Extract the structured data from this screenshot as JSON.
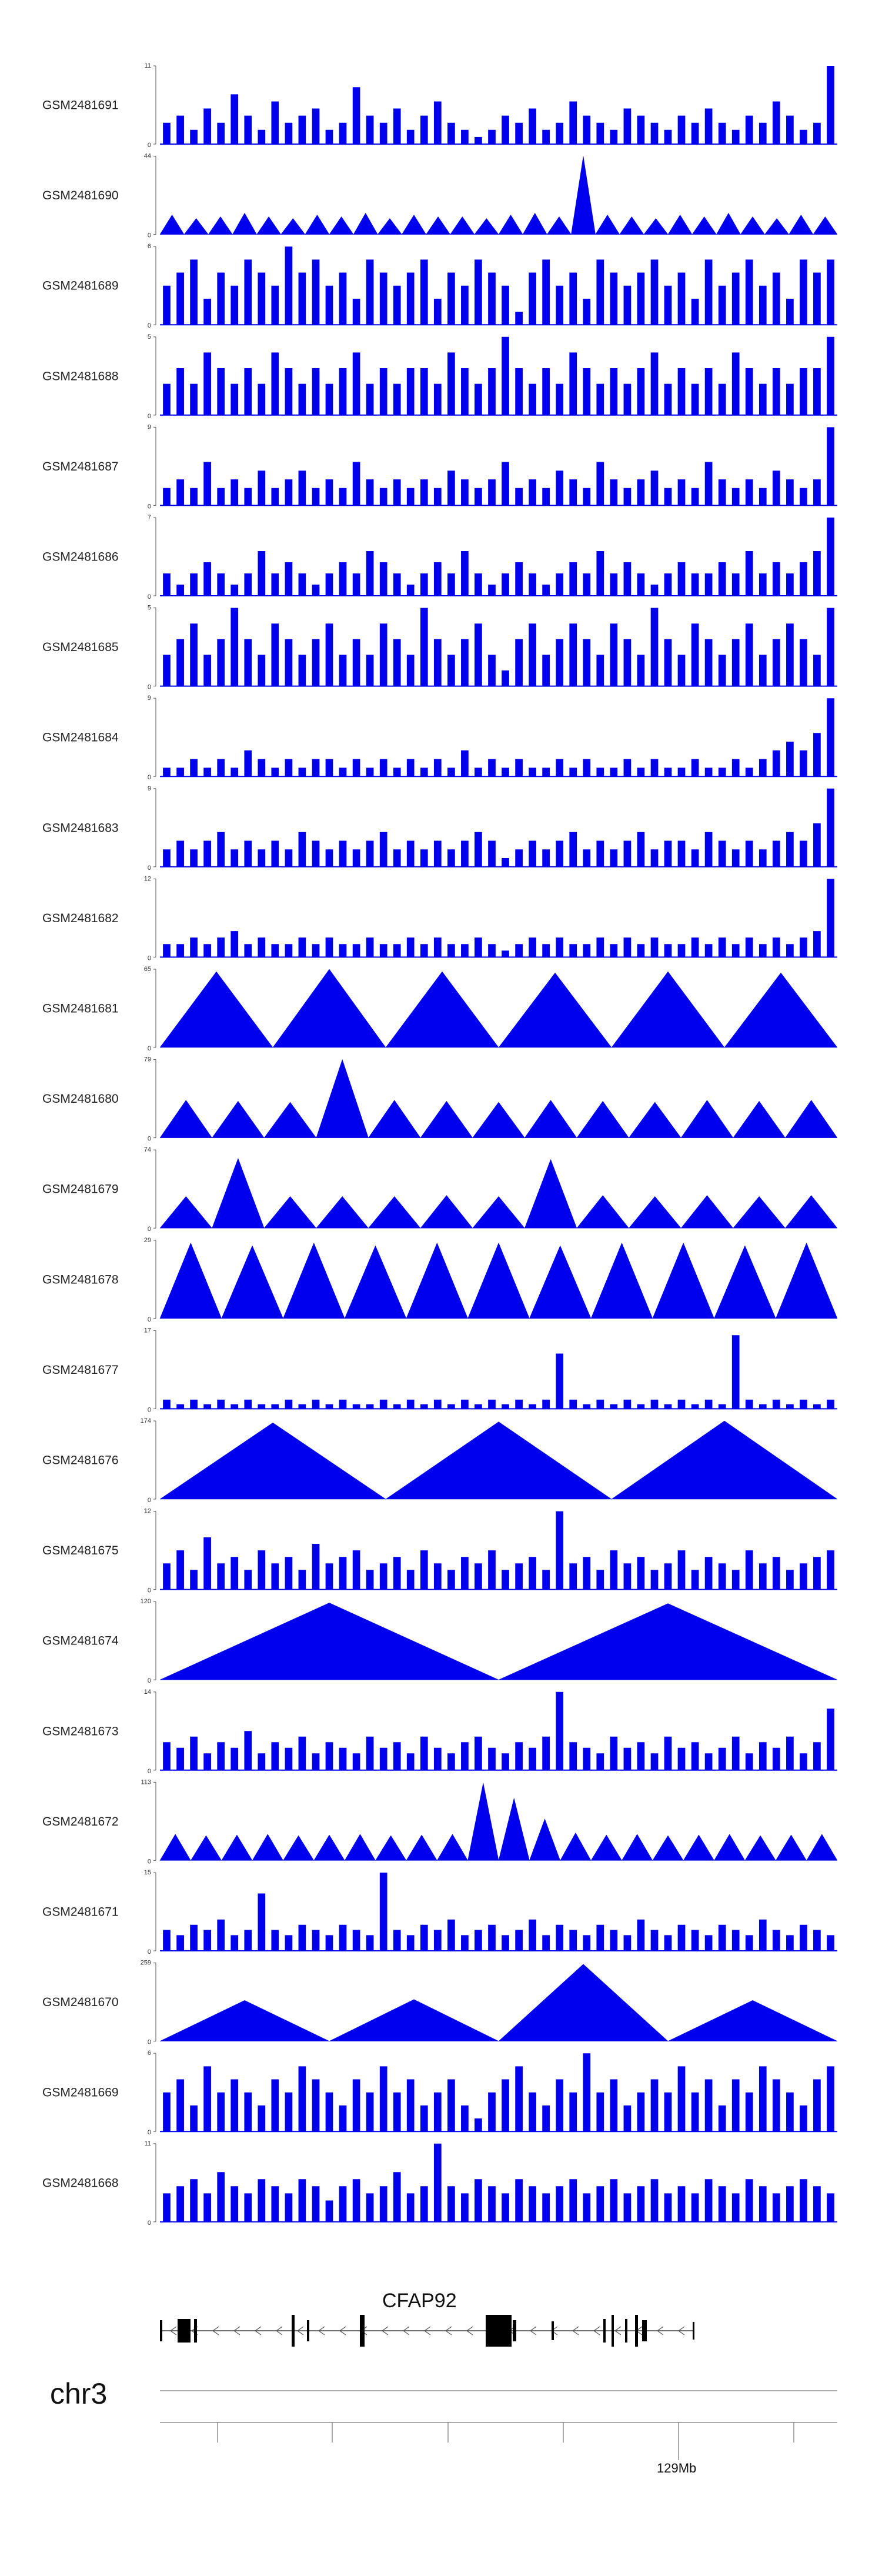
{
  "chart_data": {
    "type": "area",
    "chromosome": "chr3",
    "position_label": "129Mb",
    "gene": {
      "name": "CFAP92",
      "strand": "-"
    },
    "grid": false,
    "legend": "none",
    "tracks": [
      {
        "name": "GSM2481691",
        "ylim": [
          0,
          11
        ],
        "ymax_label": "11",
        "ymin_label": "0",
        "profile": "dense",
        "values": [
          3,
          4,
          2,
          5,
          3,
          7,
          4,
          2,
          6,
          3,
          4,
          5,
          2,
          3,
          8,
          4,
          3,
          5,
          2,
          4,
          6,
          3,
          2,
          1,
          2,
          4,
          3,
          5,
          2,
          3,
          6,
          4,
          3,
          2,
          5,
          4,
          3,
          2,
          4,
          3,
          5,
          3,
          2,
          4,
          3,
          6,
          4,
          2,
          3,
          11
        ]
      },
      {
        "name": "GSM2481690",
        "ylim": [
          0,
          44
        ],
        "ymax_label": "44",
        "ymin_label": "0",
        "profile": "peaks",
        "values": [
          11,
          9,
          10,
          12,
          10,
          9,
          11,
          10,
          12,
          9,
          11,
          10,
          10,
          9,
          11,
          12,
          10,
          44,
          11,
          10,
          9,
          11,
          10,
          12,
          10,
          9,
          11,
          10
        ]
      },
      {
        "name": "GSM2481689",
        "ylim": [
          0,
          6
        ],
        "ymax_label": "6",
        "ymin_label": "0",
        "profile": "dense",
        "values": [
          3,
          4,
          5,
          2,
          4,
          3,
          5,
          4,
          3,
          6,
          4,
          5,
          3,
          4,
          2,
          5,
          4,
          3,
          4,
          5,
          2,
          4,
          3,
          5,
          4,
          3,
          1,
          4,
          5,
          3,
          4,
          2,
          5,
          4,
          3,
          4,
          5,
          3,
          4,
          2,
          5,
          3,
          4,
          5,
          3,
          4,
          2,
          5,
          4,
          5
        ]
      },
      {
        "name": "GSM2481688",
        "ylim": [
          0,
          5
        ],
        "ymax_label": "5",
        "ymin_label": "0",
        "profile": "dense",
        "values": [
          2,
          3,
          2,
          4,
          3,
          2,
          3,
          2,
          4,
          3,
          2,
          3,
          2,
          3,
          4,
          2,
          3,
          2,
          3,
          3,
          2,
          4,
          3,
          2,
          3,
          5,
          3,
          2,
          3,
          2,
          4,
          3,
          2,
          3,
          2,
          3,
          4,
          2,
          3,
          2,
          3,
          2,
          4,
          3,
          2,
          3,
          2,
          3,
          3,
          5
        ]
      },
      {
        "name": "GSM2481687",
        "ylim": [
          0,
          9
        ],
        "ymax_label": "9",
        "ymin_label": "0",
        "profile": "dense",
        "values": [
          2,
          3,
          2,
          5,
          2,
          3,
          2,
          4,
          2,
          3,
          4,
          2,
          3,
          2,
          5,
          3,
          2,
          3,
          2,
          3,
          2,
          4,
          3,
          2,
          3,
          5,
          2,
          3,
          2,
          4,
          3,
          2,
          5,
          3,
          2,
          3,
          4,
          2,
          3,
          2,
          5,
          3,
          2,
          3,
          2,
          4,
          3,
          2,
          3,
          9
        ]
      },
      {
        "name": "GSM2481686",
        "ylim": [
          0,
          7
        ],
        "ymax_label": "7",
        "ymin_label": "0",
        "profile": "dense",
        "values": [
          2,
          1,
          2,
          3,
          2,
          1,
          2,
          4,
          2,
          3,
          2,
          1,
          2,
          3,
          2,
          4,
          3,
          2,
          1,
          2,
          3,
          2,
          4,
          2,
          1,
          2,
          3,
          2,
          1,
          2,
          3,
          2,
          4,
          2,
          3,
          2,
          1,
          2,
          3,
          2,
          2,
          3,
          2,
          4,
          2,
          3,
          2,
          3,
          4,
          7
        ]
      },
      {
        "name": "GSM2481685",
        "ylim": [
          0,
          5
        ],
        "ymax_label": "5",
        "ymin_label": "0",
        "profile": "dense",
        "values": [
          2,
          3,
          4,
          2,
          3,
          5,
          3,
          2,
          4,
          3,
          2,
          3,
          4,
          2,
          3,
          2,
          4,
          3,
          2,
          5,
          3,
          2,
          3,
          4,
          2,
          1,
          3,
          4,
          2,
          3,
          4,
          3,
          2,
          4,
          3,
          2,
          5,
          3,
          2,
          4,
          3,
          2,
          3,
          4,
          2,
          3,
          4,
          3,
          2,
          5
        ]
      },
      {
        "name": "GSM2481684",
        "ylim": [
          0,
          9
        ],
        "ymax_label": "9",
        "ymin_label": "0",
        "profile": "dense",
        "values": [
          1,
          1,
          2,
          1,
          2,
          1,
          3,
          2,
          1,
          2,
          1,
          2,
          2,
          1,
          2,
          1,
          2,
          1,
          2,
          1,
          2,
          1,
          3,
          1,
          2,
          1,
          2,
          1,
          1,
          2,
          1,
          2,
          1,
          1,
          2,
          1,
          2,
          1,
          1,
          2,
          1,
          1,
          2,
          1,
          2,
          3,
          4,
          3,
          5,
          9
        ]
      },
      {
        "name": "GSM2481683",
        "ylim": [
          0,
          9
        ],
        "ymax_label": "9",
        "ymin_label": "0",
        "profile": "dense",
        "values": [
          2,
          3,
          2,
          3,
          4,
          2,
          3,
          2,
          3,
          2,
          4,
          3,
          2,
          3,
          2,
          3,
          4,
          2,
          3,
          2,
          3,
          2,
          3,
          4,
          3,
          1,
          2,
          3,
          2,
          3,
          4,
          2,
          3,
          2,
          3,
          4,
          2,
          3,
          3,
          2,
          4,
          3,
          2,
          3,
          2,
          3,
          4,
          3,
          5,
          9
        ]
      },
      {
        "name": "GSM2481682",
        "ylim": [
          0,
          12
        ],
        "ymax_label": "12",
        "ymin_label": "0",
        "profile": "dense",
        "values": [
          2,
          2,
          3,
          2,
          3,
          4,
          2,
          3,
          2,
          2,
          3,
          2,
          3,
          2,
          2,
          3,
          2,
          2,
          3,
          2,
          3,
          2,
          2,
          3,
          2,
          1,
          2,
          3,
          2,
          3,
          2,
          2,
          3,
          2,
          3,
          2,
          3,
          2,
          2,
          3,
          2,
          3,
          2,
          3,
          2,
          3,
          2,
          3,
          4,
          12
        ]
      },
      {
        "name": "GSM2481681",
        "ylim": [
          0,
          65
        ],
        "ymax_label": "65",
        "ymin_label": "0",
        "profile": "peaks",
        "values": [
          63,
          65,
          63,
          62,
          63,
          62
        ]
      },
      {
        "name": "GSM2481680",
        "ylim": [
          0,
          79
        ],
        "ymax_label": "79",
        "ymin_label": "0",
        "profile": "peaks",
        "values": [
          38,
          37,
          36,
          79,
          38,
          37,
          36,
          38,
          37,
          36,
          38,
          37,
          38
        ]
      },
      {
        "name": "GSM2481679",
        "ylim": [
          0,
          74
        ],
        "ymax_label": "74",
        "ymin_label": "0",
        "profile": "peaks",
        "values": [
          30,
          66,
          30,
          30,
          30,
          31,
          30,
          65,
          31,
          30,
          31,
          30,
          31
        ]
      },
      {
        "name": "GSM2481678",
        "ylim": [
          0,
          29
        ],
        "ymax_label": "29",
        "ymin_label": "0",
        "profile": "peaks",
        "values": [
          28,
          27,
          28,
          27,
          28,
          28,
          27,
          28,
          28,
          27,
          28
        ]
      },
      {
        "name": "GSM2481677",
        "ylim": [
          0,
          17
        ],
        "ymax_label": "17",
        "ymin_label": "0",
        "profile": "dense",
        "values": [
          2,
          1,
          2,
          1,
          2,
          1,
          2,
          1,
          1,
          2,
          1,
          2,
          1,
          2,
          1,
          1,
          2,
          1,
          2,
          1,
          2,
          1,
          2,
          1,
          2,
          1,
          2,
          1,
          2,
          12,
          2,
          1,
          2,
          1,
          2,
          1,
          2,
          1,
          2,
          1,
          2,
          1,
          16,
          2,
          1,
          2,
          1,
          2,
          1,
          2
        ]
      },
      {
        "name": "GSM2481676",
        "ylim": [
          0,
          174
        ],
        "ymax_label": "174",
        "ymin_label": "0",
        "profile": "peaks",
        "values": [
          170,
          172,
          174
        ]
      },
      {
        "name": "GSM2481675",
        "ylim": [
          0,
          12
        ],
        "ymax_label": "12",
        "ymin_label": "0",
        "profile": "dense",
        "values": [
          4,
          6,
          3,
          8,
          4,
          5,
          3,
          6,
          4,
          5,
          3,
          7,
          4,
          5,
          6,
          3,
          4,
          5,
          3,
          6,
          4,
          3,
          5,
          4,
          6,
          3,
          4,
          5,
          3,
          12,
          4,
          5,
          3,
          6,
          4,
          5,
          3,
          4,
          6,
          3,
          5,
          4,
          3,
          6,
          4,
          5,
          3,
          4,
          5,
          6
        ]
      },
      {
        "name": "GSM2481674",
        "ylim": [
          0,
          120
        ],
        "ymax_label": "120",
        "ymin_label": "0",
        "profile": "peaks",
        "values": [
          118,
          117
        ]
      },
      {
        "name": "GSM2481673",
        "ylim": [
          0,
          14
        ],
        "ymax_label": "14",
        "ymin_label": "0",
        "profile": "dense",
        "values": [
          5,
          4,
          6,
          3,
          5,
          4,
          7,
          3,
          5,
          4,
          6,
          3,
          5,
          4,
          3,
          6,
          4,
          5,
          3,
          6,
          4,
          3,
          5,
          6,
          4,
          3,
          5,
          4,
          6,
          14,
          5,
          4,
          3,
          6,
          4,
          5,
          3,
          6,
          4,
          5,
          3,
          4,
          6,
          3,
          5,
          4,
          6,
          3,
          5,
          11
        ]
      },
      {
        "name": "GSM2481672",
        "ylim": [
          0,
          113
        ],
        "ymax_label": "113",
        "ymin_label": "0",
        "profile": "peaks",
        "values": [
          38,
          36,
          37,
          38,
          36,
          37,
          38,
          36,
          37,
          38,
          112,
          90,
          60,
          40,
          37,
          38,
          36,
          37,
          38,
          36,
          37,
          38
        ]
      },
      {
        "name": "GSM2481671",
        "ylim": [
          0,
          15
        ],
        "ymax_label": "15",
        "ymin_label": "0",
        "profile": "dense",
        "values": [
          4,
          3,
          5,
          4,
          6,
          3,
          4,
          11,
          4,
          3,
          5,
          4,
          3,
          5,
          4,
          3,
          15,
          4,
          3,
          5,
          4,
          6,
          3,
          4,
          5,
          3,
          4,
          6,
          3,
          5,
          4,
          3,
          5,
          4,
          3,
          6,
          4,
          3,
          5,
          4,
          3,
          5,
          4,
          3,
          6,
          4,
          3,
          5,
          4,
          3
        ]
      },
      {
        "name": "GSM2481670",
        "ylim": [
          0,
          259
        ],
        "ymax_label": "259",
        "ymin_label": "0",
        "profile": "peaks",
        "values": [
          135,
          138,
          255,
          135
        ]
      },
      {
        "name": "GSM2481669",
        "ylim": [
          0,
          6
        ],
        "ymax_label": "6",
        "ymin_label": "0",
        "profile": "dense",
        "values": [
          3,
          4,
          2,
          5,
          3,
          4,
          3,
          2,
          4,
          3,
          5,
          4,
          3,
          2,
          4,
          3,
          5,
          3,
          4,
          2,
          3,
          4,
          2,
          1,
          3,
          4,
          5,
          3,
          2,
          4,
          3,
          6,
          3,
          4,
          2,
          3,
          4,
          3,
          5,
          3,
          4,
          2,
          4,
          3,
          5,
          4,
          3,
          2,
          4,
          5
        ]
      },
      {
        "name": "GSM2481668",
        "ylim": [
          0,
          11
        ],
        "ymax_label": "11",
        "ymin_label": "0",
        "profile": "dense",
        "values": [
          4,
          5,
          6,
          4,
          7,
          5,
          4,
          6,
          5,
          4,
          6,
          5,
          3,
          5,
          6,
          4,
          5,
          7,
          4,
          5,
          11,
          5,
          4,
          6,
          5,
          4,
          6,
          5,
          4,
          5,
          6,
          4,
          5,
          6,
          4,
          5,
          6,
          4,
          5,
          4,
          6,
          5,
          4,
          6,
          5,
          4,
          5,
          6,
          5,
          4
        ]
      }
    ]
  }
}
